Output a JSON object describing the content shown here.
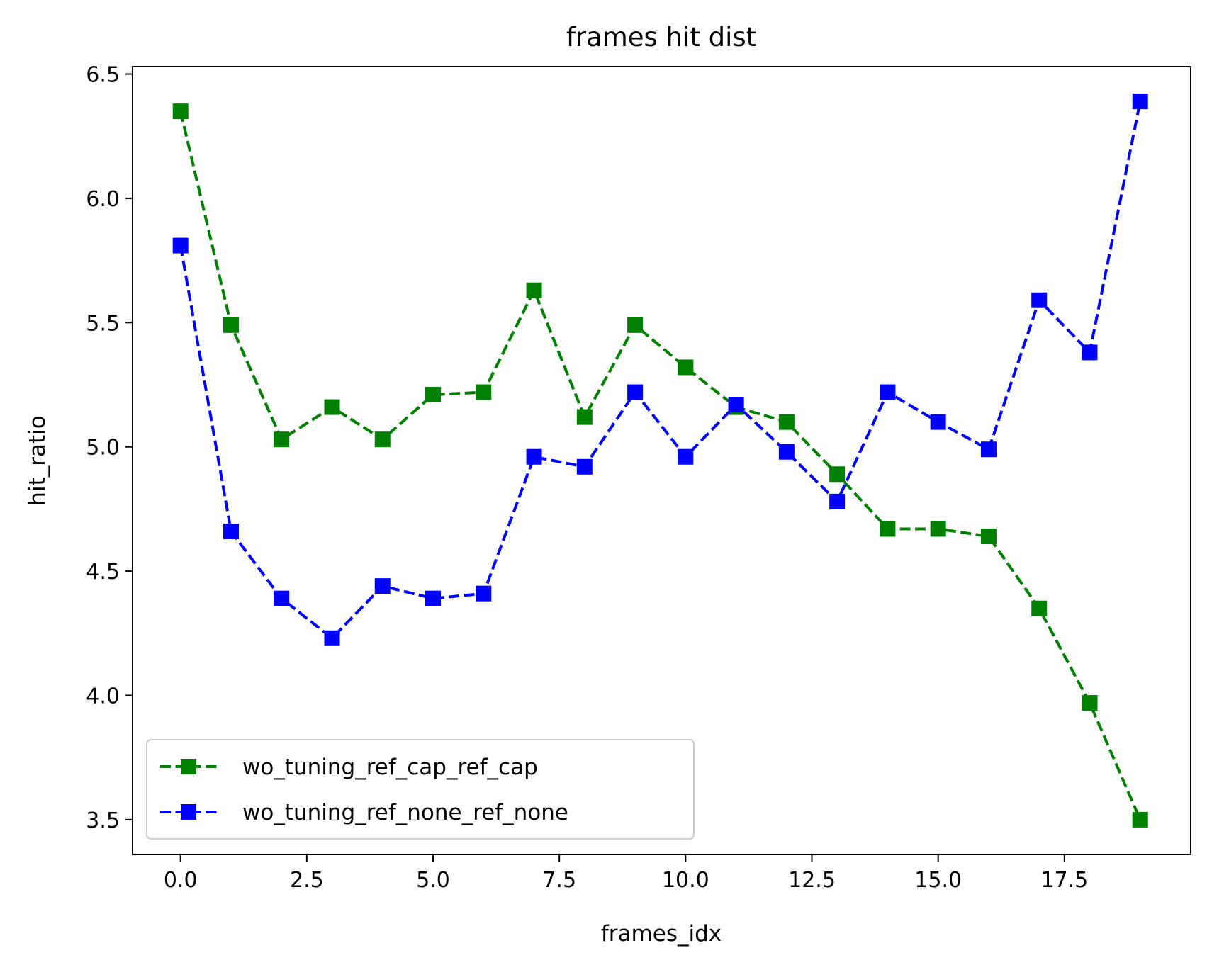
{
  "chart_data": {
    "type": "line",
    "title": "frames hit dist",
    "xlabel": "frames_idx",
    "ylabel": "hit_ratio",
    "xlim": [
      -0.95,
      20.0
    ],
    "ylim": [
      3.36,
      6.53
    ],
    "xticks": [
      0.0,
      2.5,
      5.0,
      7.5,
      10.0,
      12.5,
      15.0,
      17.5
    ],
    "xtick_labels": [
      "0.0",
      "2.5",
      "5.0",
      "7.5",
      "10.0",
      "12.5",
      "15.0",
      "17.5"
    ],
    "yticks": [
      3.5,
      4.0,
      4.5,
      5.0,
      5.5,
      6.0,
      6.5
    ],
    "ytick_labels": [
      "3.5",
      "4.0",
      "4.5",
      "5.0",
      "5.5",
      "6.0",
      "6.5"
    ],
    "grid": false,
    "legend_position": "lower-left",
    "x": [
      0,
      1,
      2,
      3,
      4,
      5,
      6,
      7,
      8,
      9,
      10,
      11,
      12,
      13,
      14,
      15,
      16,
      17,
      18,
      19
    ],
    "series": [
      {
        "name": "wo_tuning_ref_cap_ref_cap",
        "color": "#008000",
        "line_style": "dashed",
        "marker": "square",
        "values": [
          6.35,
          5.49,
          5.03,
          5.16,
          5.03,
          5.21,
          5.22,
          5.63,
          5.12,
          5.49,
          5.32,
          5.16,
          5.1,
          4.89,
          4.67,
          4.67,
          4.64,
          4.35,
          3.97,
          3.5
        ]
      },
      {
        "name": "wo_tuning_ref_none_ref_none",
        "color": "#0000ff",
        "line_style": "dashed",
        "marker": "square",
        "values": [
          5.81,
          4.66,
          4.39,
          4.23,
          4.44,
          4.39,
          4.41,
          4.96,
          4.92,
          5.22,
          4.96,
          5.17,
          4.98,
          4.78,
          5.22,
          5.1,
          4.99,
          5.59,
          5.38,
          6.39
        ]
      }
    ]
  }
}
